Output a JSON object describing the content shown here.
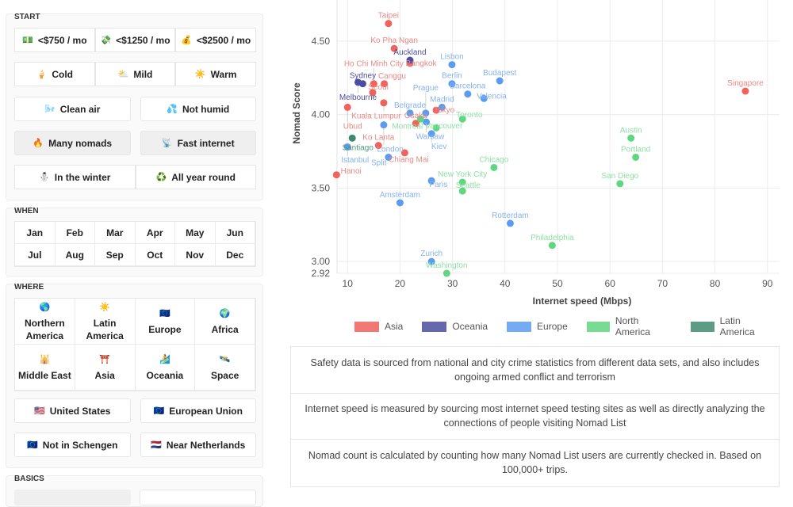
{
  "sidebar": {
    "start": {
      "title": "START",
      "cost": [
        {
          "icon": "💵",
          "label": "<$750 / mo"
        },
        {
          "icon": "💸",
          "label": "<$1250 / mo"
        },
        {
          "icon": "💰",
          "label": "<$2500 / mo"
        }
      ],
      "climate": [
        {
          "icon": "🍦",
          "label": "Cold"
        },
        {
          "icon": "⛅",
          "label": "Mild"
        },
        {
          "icon": "☀️",
          "label": "Warm"
        }
      ],
      "air": [
        {
          "icon": "🌬️",
          "label": "Clean air"
        },
        {
          "icon": "💦",
          "label": "Not humid"
        }
      ],
      "nomads": [
        {
          "icon": "🔥",
          "label": "Many nomads"
        },
        {
          "icon": "📡",
          "label": "Fast internet"
        }
      ],
      "season": [
        {
          "icon": "⛄",
          "label": "In the winter"
        },
        {
          "icon": "♻️",
          "label": "All year round"
        }
      ]
    },
    "when": {
      "title": "WHEN",
      "months": [
        "Jan",
        "Feb",
        "Mar",
        "Apr",
        "May",
        "Jun",
        "Jul",
        "Aug",
        "Sep",
        "Oct",
        "Nov",
        "Dec"
      ]
    },
    "where": {
      "title": "WHERE",
      "regions": [
        {
          "icon": "🌎",
          "label": "Northern America"
        },
        {
          "icon": "☀️",
          "label": "Latin America"
        },
        {
          "icon": "🇪🇺",
          "label": "Europe"
        },
        {
          "icon": "🌍",
          "label": "Africa"
        },
        {
          "icon": "🕌",
          "label": "Middle East"
        },
        {
          "icon": "⛩️",
          "label": "Asia"
        },
        {
          "icon": "🏄",
          "label": "Oceania"
        },
        {
          "icon": "🛰️",
          "label": "Space"
        }
      ],
      "filters1": [
        {
          "icon": "🇺🇸",
          "label": "United States"
        },
        {
          "icon": "🇪🇺",
          "label": "European Union"
        }
      ],
      "filters2": [
        {
          "icon": "🇪🇺",
          "label": "Not in Schengen"
        },
        {
          "icon": "🇳🇱",
          "label": "Near Netherlands"
        }
      ]
    },
    "basics": {
      "title": "BASICS"
    }
  },
  "chart_data": {
    "type": "scatter",
    "xlabel": "Internet speed (Mbps)",
    "ylabel": "Nomad Score",
    "xlim": [
      8,
      92.3
    ],
    "ylim": [
      2.92,
      4.78
    ],
    "xticks": [
      10,
      20,
      30,
      40,
      50,
      60,
      70,
      80,
      90
    ],
    "yticks": [
      2.92,
      3.0,
      3.5,
      4.0,
      4.5
    ],
    "ytick_labels": [
      "2.92",
      "3.00",
      "3.50",
      "4.00",
      "4.50"
    ],
    "grid": true,
    "legend_position": "bottom",
    "series": [
      {
        "name": "Asia",
        "color": "#f0625a",
        "label_color": "#e88a85",
        "points": [
          {
            "label": "Taipei",
            "x": 17.8,
            "y": 4.62
          },
          {
            "label": "Ko Pha Ngan",
            "x": 18.9,
            "y": 4.45
          },
          {
            "label": "Bangkok",
            "x": 21.9,
            "y": 4.35
          },
          {
            "label": "Canggu",
            "x": 17.0,
            "y": 4.21
          },
          {
            "label": "Ho Chi Minh City",
            "x": 15.0,
            "y": 4.21
          },
          {
            "label": "Seoul",
            "x": 14.8,
            "y": 4.15
          },
          {
            "label": "Ubud",
            "x": 10.0,
            "y": 4.05
          },
          {
            "label": "Kuala Lumpur",
            "x": 16.9,
            "y": 4.08
          },
          {
            "label": "Singapore",
            "x": 85.8,
            "y": 4.16
          },
          {
            "label": "Tokyo",
            "x": 26.9,
            "y": 4.03
          },
          {
            "label": "Osaka",
            "x": 23.0,
            "y": 3.94
          },
          {
            "label": "Ko Lanta",
            "x": 15.9,
            "y": 3.79
          },
          {
            "label": "Chiang Mai",
            "x": 20.9,
            "y": 3.74
          },
          {
            "label": "Hanoi",
            "x": 7.9,
            "y": 3.59
          }
        ]
      },
      {
        "name": "Oceania",
        "color": "#4b4da0",
        "label_color": "#4b4da0",
        "points": [
          {
            "label": "Auckland",
            "x": 21.9,
            "y": 4.37
          },
          {
            "label": "Melbourne",
            "x": 12.0,
            "y": 4.22
          },
          {
            "label": "Sydney",
            "x": 12.9,
            "y": 4.21
          }
        ]
      },
      {
        "name": "Europe",
        "color": "#5c9cf0",
        "label_color": "#86b3ee",
        "points": [
          {
            "label": "Lisbon",
            "x": 29.9,
            "y": 4.34
          },
          {
            "label": "Budapest",
            "x": 39.0,
            "y": 4.23
          },
          {
            "label": "Berlin",
            "x": 29.9,
            "y": 4.21
          },
          {
            "label": "Barcelona",
            "x": 32.9,
            "y": 4.14
          },
          {
            "label": "Valencia",
            "x": 36.0,
            "y": 4.11
          },
          {
            "label": "London",
            "x": 16.9,
            "y": 3.93
          },
          {
            "label": "Belgrade",
            "x": 21.9,
            "y": 4.01
          },
          {
            "label": "Prague",
            "x": 24.9,
            "y": 4.01
          },
          {
            "label": "Madrid",
            "x": 28.0,
            "y": 4.05
          },
          {
            "label": "Warsaw",
            "x": 25.0,
            "y": 3.95
          },
          {
            "label": "Kiev",
            "x": 26.0,
            "y": 3.87
          },
          {
            "label": "Istanbul",
            "x": 10.0,
            "y": 3.78
          },
          {
            "label": "Split",
            "x": 17.8,
            "y": 3.71
          },
          {
            "label": "Paris",
            "x": 26.0,
            "y": 3.55
          },
          {
            "label": "Amsterdam",
            "x": 20.0,
            "y": 3.4
          },
          {
            "label": "Rotterdam",
            "x": 41.0,
            "y": 3.26
          },
          {
            "label": "Zurich",
            "x": 26.0,
            "y": 3.0
          }
        ]
      },
      {
        "name": "North America",
        "color": "#5fd67f",
        "label_color": "#8fe0a5",
        "points": [
          {
            "label": "Toronto",
            "x": 31.9,
            "y": 3.97
          },
          {
            "label": "Montreal",
            "x": 23.9,
            "y": 3.97
          },
          {
            "label": "Vancouver",
            "x": 26.9,
            "y": 3.91
          },
          {
            "label": "Austin",
            "x": 64.0,
            "y": 3.84
          },
          {
            "label": "Portland",
            "x": 64.9,
            "y": 3.71
          },
          {
            "label": "San Diego",
            "x": 61.9,
            "y": 3.53
          },
          {
            "label": "Chicago",
            "x": 37.9,
            "y": 3.64
          },
          {
            "label": "New York City",
            "x": 31.9,
            "y": 3.54
          },
          {
            "label": "Seattle",
            "x": 31.9,
            "y": 3.48
          },
          {
            "label": "Philadelphia",
            "x": 49.0,
            "y": 3.11
          },
          {
            "label": "Washington",
            "x": 28.9,
            "y": 2.92
          }
        ]
      },
      {
        "name": "Latin America",
        "color": "#3f8a6e",
        "label_color": "#4f9a7e",
        "points": [
          {
            "label": "Santiago",
            "x": 10.9,
            "y": 3.84
          }
        ]
      }
    ]
  },
  "notes": [
    "Safety data is sourced from national and city crime statistics from different data sets, and also includes ongoing armed conflict and terrorism",
    "Internet speed is measured by sourcing most internet speed testing sites as well as directly analyzing the connections of people visiting Nomad List",
    "Nomad count is calculated by counting how many Nomad List users are currently checked in. Based on 100,000+ trips."
  ]
}
